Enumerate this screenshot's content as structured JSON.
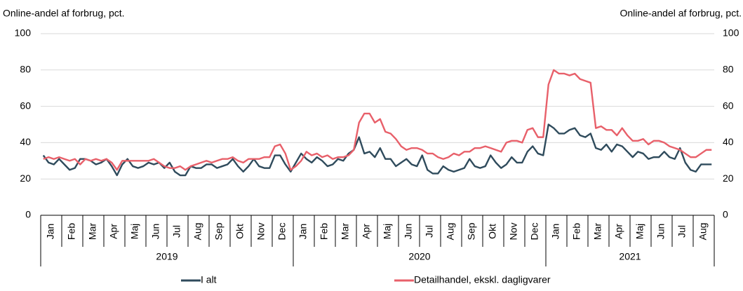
{
  "chart_data": {
    "type": "line",
    "y_label": "Online-andel af forbrug, pct.",
    "y2_label": "Online-andel af forbrug, pct.",
    "categories": [
      null,
      "Jan",
      null,
      null,
      null,
      "Feb",
      null,
      null,
      null,
      "Mar",
      null,
      null,
      null,
      "Apr",
      null,
      null,
      null,
      "Maj",
      null,
      null,
      null,
      "Jun",
      null,
      null,
      null,
      "Jul",
      null,
      null,
      null,
      "Aug",
      null,
      null,
      null,
      "Sep",
      null,
      null,
      null,
      "Okt",
      null,
      null,
      null,
      "Nov",
      null,
      null,
      null,
      "Dec",
      null,
      null,
      null,
      "Jan",
      null,
      null,
      null,
      "Feb",
      null,
      null,
      null,
      "Mar",
      null,
      null,
      null,
      "Apr",
      null,
      null,
      null,
      "Maj",
      null,
      null,
      null,
      "Jun",
      null,
      null,
      null,
      "Jul",
      null,
      null,
      null,
      "Aug",
      null,
      null,
      null,
      "Sep",
      null,
      null,
      null,
      "Okt",
      null,
      null,
      null,
      "Nov",
      null,
      null,
      null,
      "Dec",
      null,
      null,
      null,
      "Jan",
      null,
      null,
      null,
      "Feb",
      null,
      null,
      null,
      "Mar",
      null,
      null,
      null,
      "Apr",
      null,
      null,
      null,
      "Maj",
      null,
      null,
      null,
      "Jun",
      null,
      null,
      null,
      "Jul",
      null,
      null,
      null,
      "Aug",
      null,
      null
    ],
    "years": [
      "2019",
      "2020",
      "2021"
    ],
    "series": [
      {
        "name": "I alt",
        "color": "#2f4b5c",
        "values": [
          33,
          29,
          28,
          31,
          28,
          25,
          26,
          31,
          31,
          30,
          28,
          29,
          31,
          27,
          22,
          28,
          31,
          27,
          26,
          27,
          29,
          28,
          29,
          26,
          29,
          24,
          22,
          22,
          27,
          26,
          26,
          28,
          28,
          26,
          27,
          28,
          31,
          27,
          24,
          27,
          31,
          27,
          26,
          26,
          33,
          33,
          28,
          24,
          29,
          34,
          31,
          29,
          32,
          30,
          27,
          28,
          31,
          30,
          34,
          36,
          43,
          34,
          35,
          32,
          37,
          31,
          31,
          27,
          29,
          31,
          28,
          27,
          33,
          25,
          23,
          23,
          27,
          25,
          24,
          25,
          26,
          31,
          27,
          26,
          27,
          33,
          29,
          26,
          28,
          32,
          29,
          29,
          35,
          38,
          34,
          33,
          50,
          48,
          45,
          45,
          47,
          48,
          44,
          43,
          45,
          37,
          36,
          39,
          35,
          39,
          38,
          35,
          32,
          35,
          34,
          31,
          32,
          32,
          35,
          32,
          31,
          37,
          29,
          25,
          24,
          28,
          28,
          28
        ]
      },
      {
        "name": "Detailhandel, ekskl. dagligvarer",
        "color": "#e8606a",
        "values": [
          31,
          32,
          31,
          32,
          31,
          30,
          31,
          28,
          31,
          30,
          31,
          30,
          31,
          29,
          25,
          30,
          30,
          30,
          30,
          30,
          30,
          31,
          29,
          27,
          26,
          26,
          27,
          25,
          27,
          28,
          29,
          30,
          29,
          30,
          31,
          31,
          32,
          30,
          29,
          31,
          31,
          31,
          32,
          32,
          38,
          39,
          34,
          25,
          27,
          30,
          35,
          33,
          34,
          32,
          33,
          31,
          32,
          32,
          33,
          36,
          51,
          56,
          56,
          51,
          53,
          46,
          45,
          42,
          38,
          36,
          37,
          37,
          36,
          34,
          34,
          32,
          31,
          32,
          34,
          33,
          35,
          35,
          37,
          37,
          38,
          37,
          36,
          35,
          40,
          41,
          41,
          40,
          47,
          48,
          43,
          43,
          72,
          80,
          78,
          78,
          77,
          78,
          75,
          74,
          73,
          48,
          49,
          47,
          47,
          44,
          48,
          44,
          41,
          41,
          42,
          39,
          41,
          41,
          40,
          38,
          37,
          36,
          34,
          32,
          32,
          34,
          36,
          36
        ]
      }
    ],
    "ylim": [
      0,
      100
    ],
    "yticks": [
      0,
      20,
      40,
      60,
      80,
      100
    ],
    "grid": true
  }
}
